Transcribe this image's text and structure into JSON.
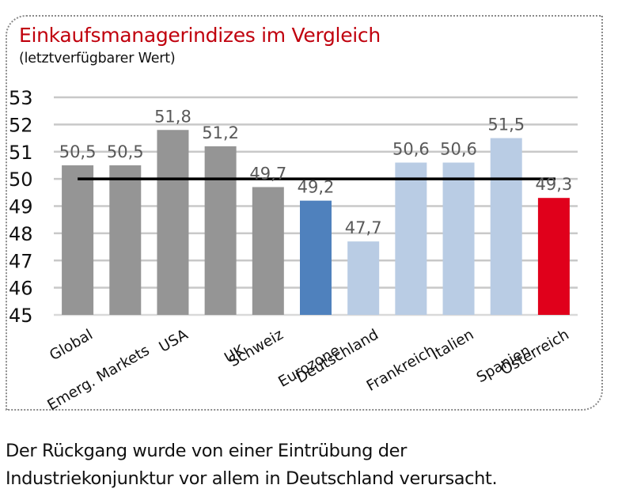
{
  "chart_data": {
    "type": "bar",
    "title": "Einkaufsmanagerindizes im Vergleich",
    "subtitle": "(letztverfügbarer Wert)",
    "xlabel": "",
    "ylabel": "",
    "ylim": [
      45,
      53
    ],
    "yticks": [
      53,
      52,
      51,
      50,
      49,
      48,
      47,
      46,
      45
    ],
    "grid": true,
    "legend": "none",
    "reference_line": {
      "value": 50,
      "color": "#000000"
    },
    "categories": [
      "Global",
      "Emerg. Markets",
      "USA",
      "UK",
      "Schweiz",
      "Eurozone",
      "Deutschland",
      "Frankreich",
      "Italien",
      "Spanien",
      "Österreich"
    ],
    "values": [
      50.5,
      50.5,
      51.8,
      51.2,
      49.7,
      49.2,
      47.7,
      50.6,
      50.6,
      51.5,
      49.3
    ],
    "value_labels": [
      "50,5",
      "50,5",
      "51,8",
      "51,2",
      "49,7",
      "49,2",
      "47,7",
      "50,6",
      "50,6",
      "51,5",
      "49,3"
    ],
    "bar_colors": [
      "#959595",
      "#959595",
      "#959595",
      "#959595",
      "#959595",
      "#4f81bd",
      "#b9cce4",
      "#b9cce4",
      "#b9cce4",
      "#b9cce4",
      "#e0001b"
    ]
  },
  "colors": {
    "title": "#c0000d",
    "gridline": "#c8c8c8",
    "value_label": "#595959"
  },
  "caption": {
    "lines": [
      "Der Rückgang wurde von einer Eintrübung der",
      "Industriekonjunktur vor allem in Deutschland verursacht."
    ]
  }
}
